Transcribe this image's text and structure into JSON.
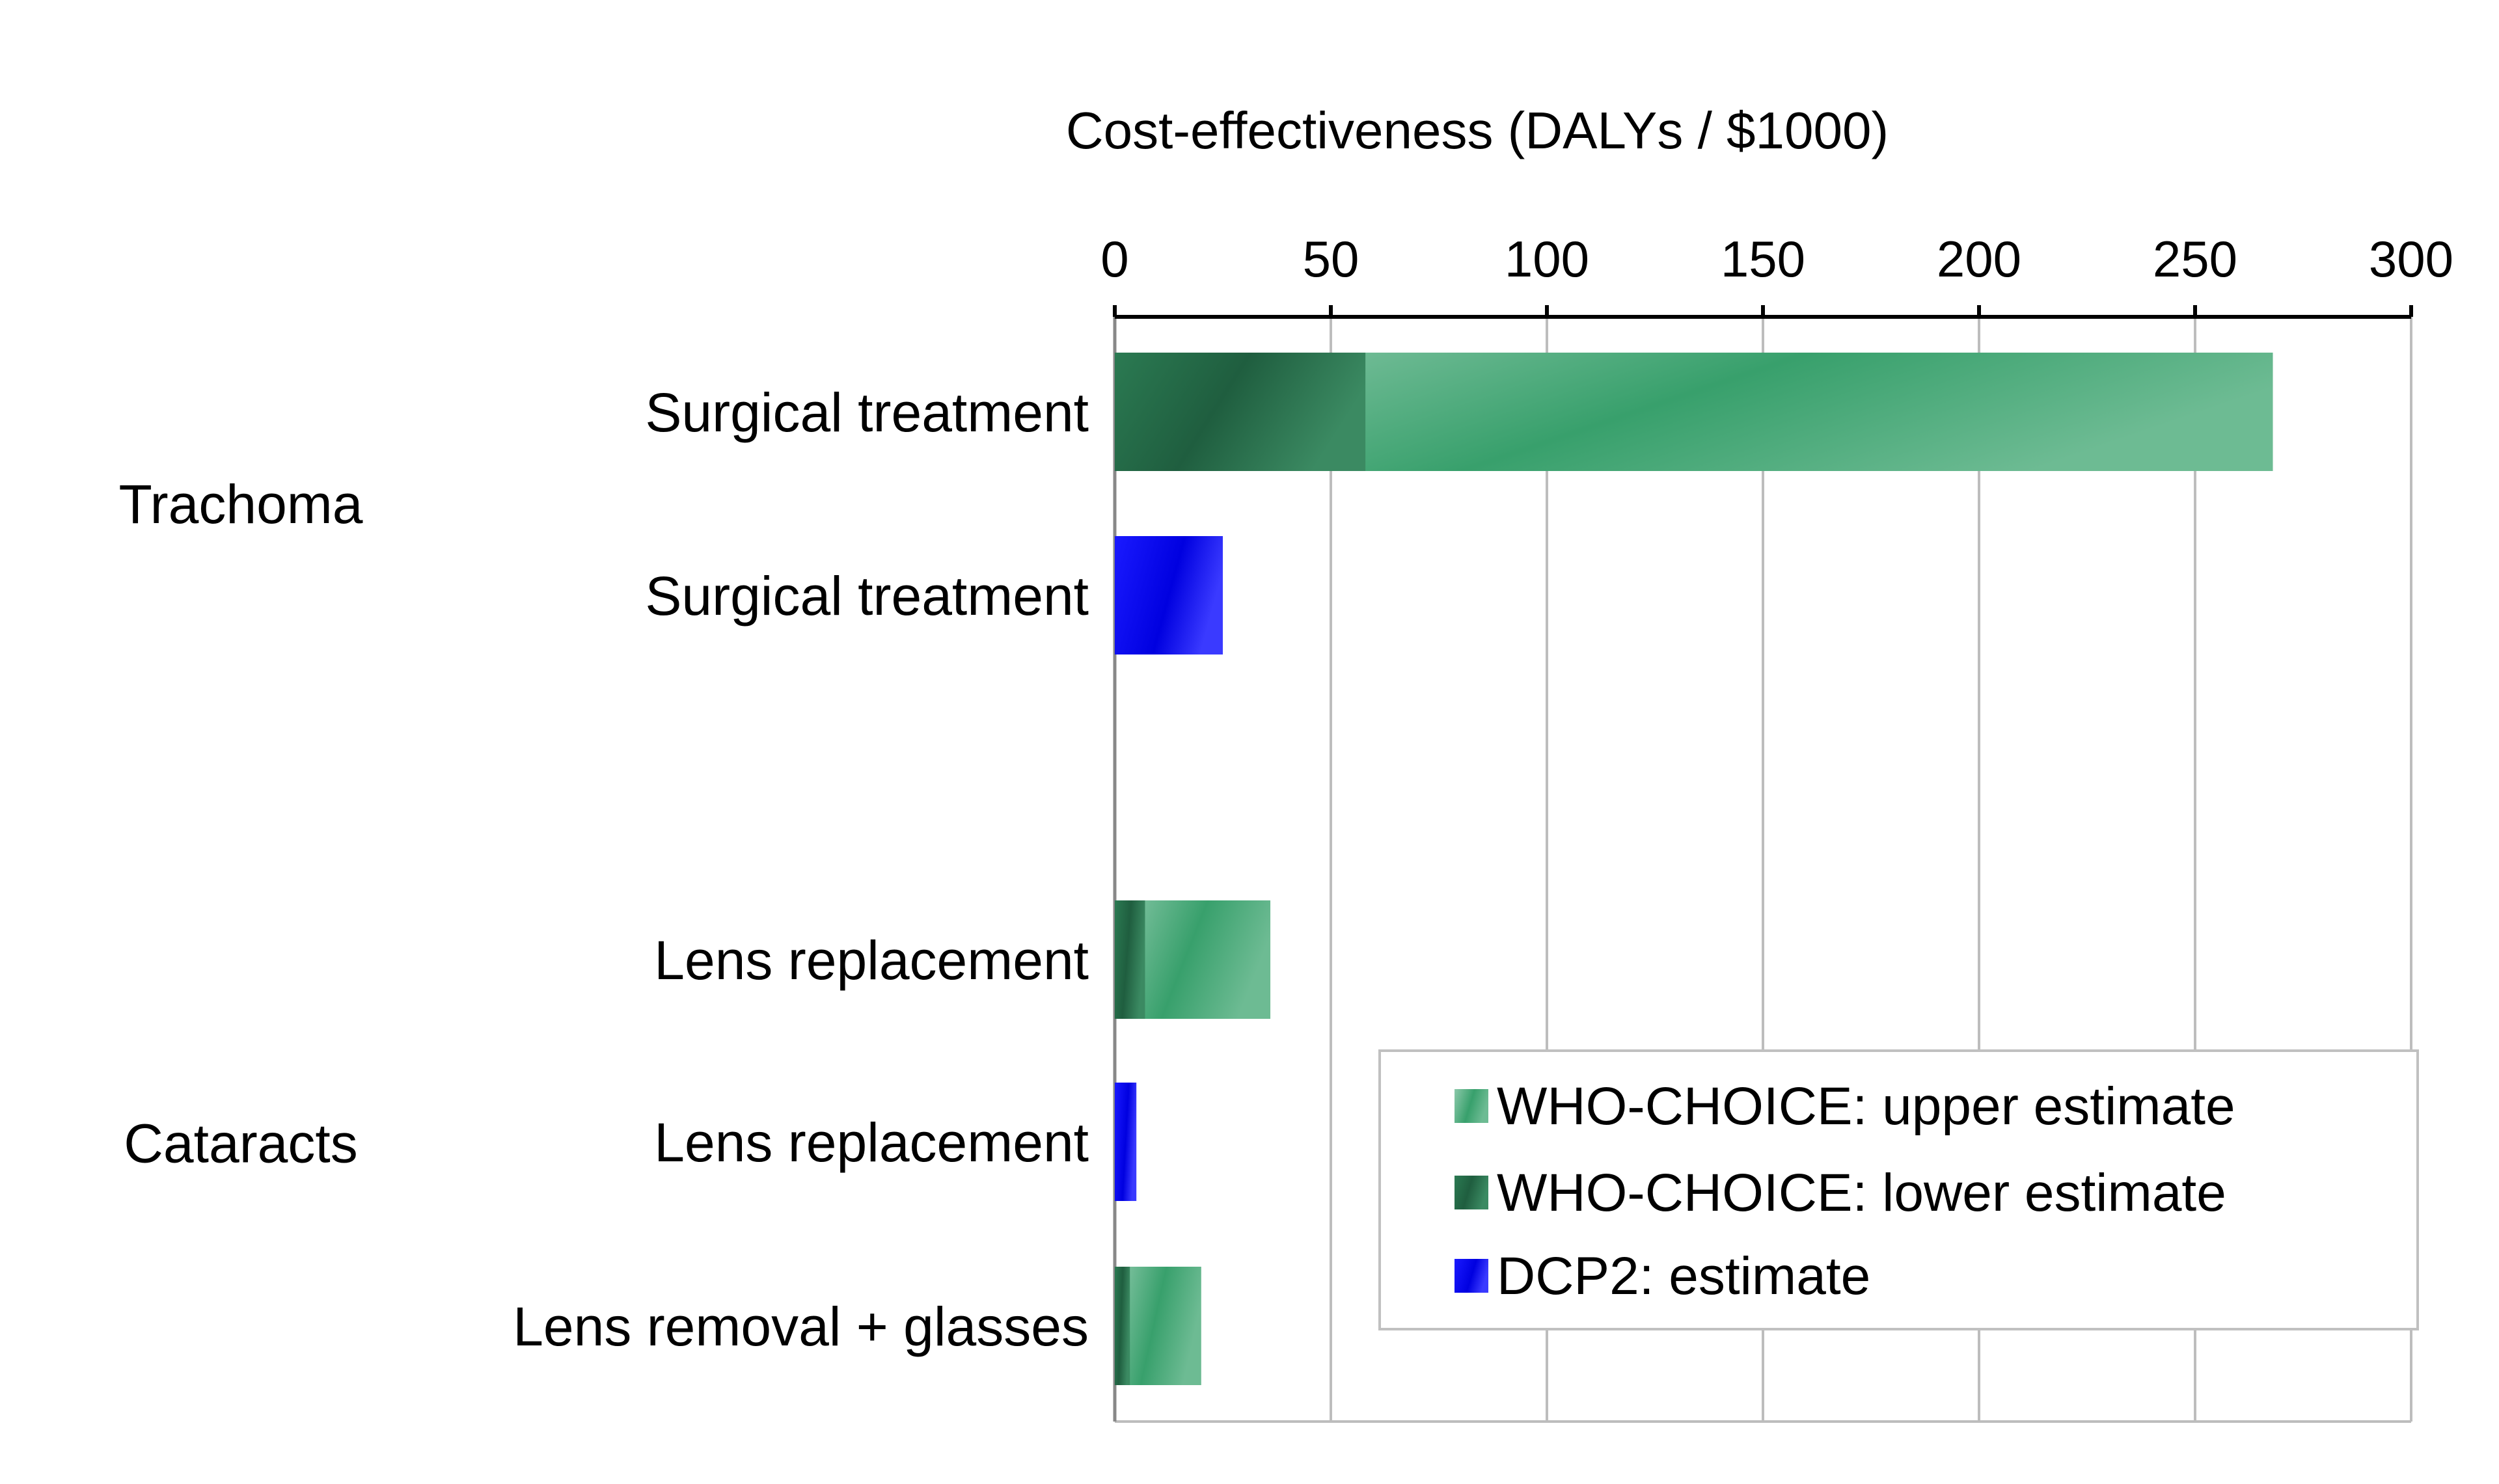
{
  "chart_data": {
    "type": "bar",
    "orientation": "horizontal",
    "stacked": "overlay",
    "title": "Cost-effectiveness   (DALYs / $1000)",
    "xaxis_position": "top",
    "xlim": [
      0,
      300
    ],
    "xticks": [
      0,
      50,
      100,
      150,
      200,
      250,
      300
    ],
    "grid": true,
    "legend_position": "bottom-right",
    "colors": {
      "upper": "#5cb08a",
      "lower": "#2e7a55",
      "dcp2": "#1010ee"
    },
    "groups": [
      {
        "name": "Trachoma",
        "rows": [
          0,
          1
        ]
      },
      {
        "name": "Cataracts",
        "rows": [
          2,
          3,
          4
        ]
      }
    ],
    "categories": [
      "Surgical treatment",
      "Surgical treatment",
      "Lens replacement",
      "Lens replacement",
      "Lens removal + glasses"
    ],
    "series": [
      {
        "name": "WHO-CHOICE: upper estimate",
        "key": "upper",
        "values": [
          268,
          null,
          36,
          null,
          20
        ]
      },
      {
        "name": "WHO-CHOICE: lower estimate",
        "key": "lower",
        "values": [
          58,
          null,
          7,
          null,
          3.5
        ]
      },
      {
        "name": "DCP2: estimate",
        "key": "dcp2",
        "values": [
          null,
          25,
          null,
          5,
          null
        ]
      }
    ]
  }
}
